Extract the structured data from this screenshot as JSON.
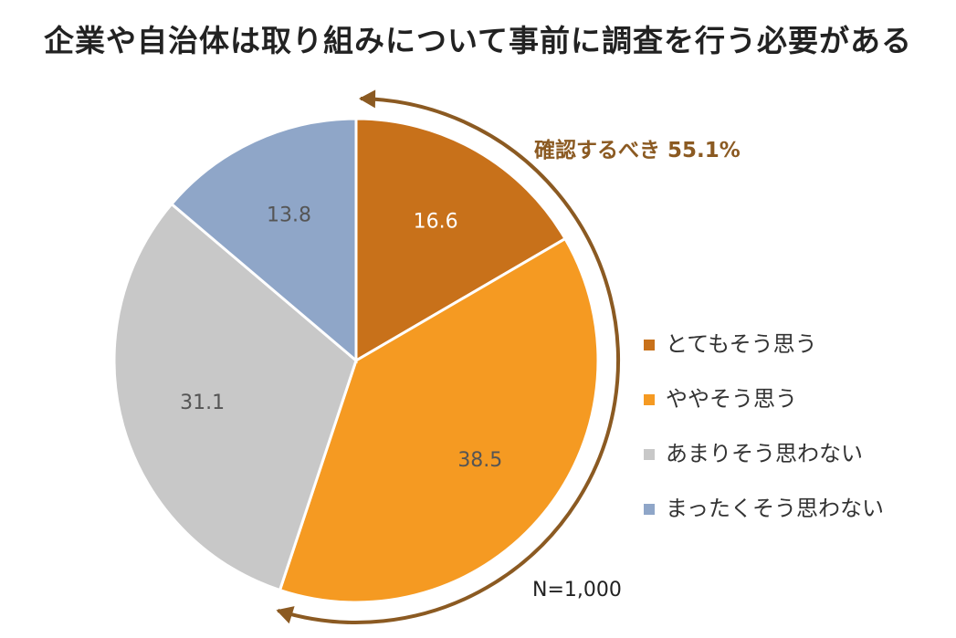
{
  "chart_data": {
    "type": "pie",
    "title": "企業や自治体は取り組みについて事前に調査を行う必要がある",
    "start_angle_deg": 0,
    "direction": "clockwise",
    "slices": [
      {
        "label": "とてもそう思う",
        "value": 16.6,
        "value_label": "16.6",
        "color": "#C8711A",
        "label_color": "#ffffff"
      },
      {
        "label": "ややそう思う",
        "value": 38.5,
        "value_label": "38.5",
        "color": "#F59A22",
        "label_color": "#555555"
      },
      {
        "label": "あまりそう思わない",
        "value": 31.1,
        "value_label": "31.1",
        "color": "#C8C8C8",
        "label_color": "#555555"
      },
      {
        "label": "まったくそう思わない",
        "value": 13.8,
        "value_label": "13.8",
        "color": "#8FA6C8",
        "label_color": "#555555"
      }
    ],
    "legend_position": "right",
    "annotation": {
      "text": "確認するべき 55.1%",
      "color": "#8B5A22",
      "spans": [
        "とてもそう思う",
        "ややそう思う"
      ]
    },
    "sample_size": "N=1,000"
  }
}
